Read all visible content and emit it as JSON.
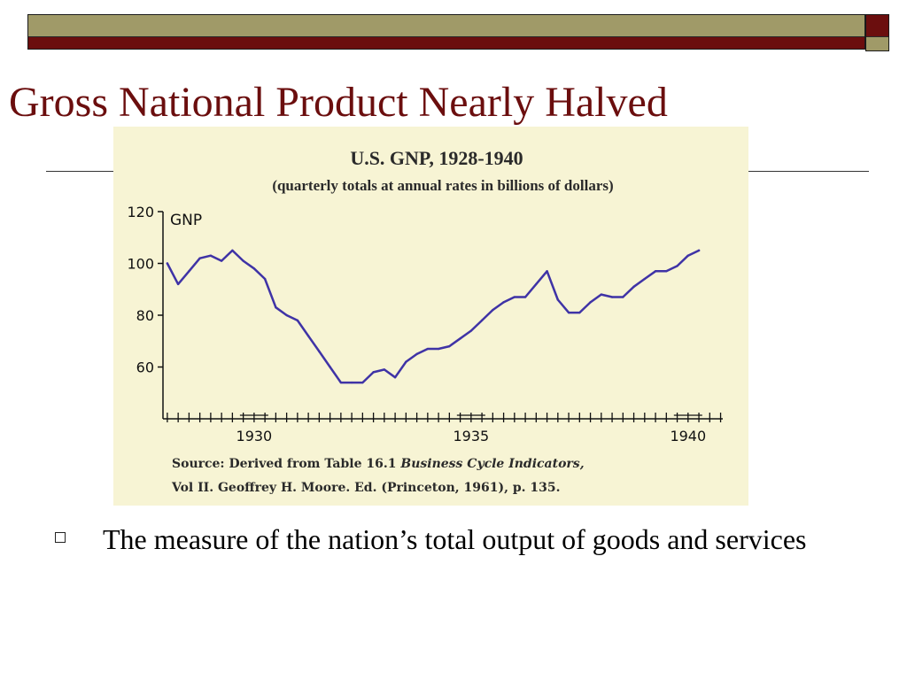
{
  "slide": {
    "title": "Gross National Product Nearly Halved",
    "bullet": "The measure of the nation’s total output of goods and services",
    "colors": {
      "title": "#6b0e0e",
      "bar_maroon": "#6b0e0e",
      "bar_olive": "#a09a68"
    }
  },
  "chart_data": {
    "type": "line",
    "title": "U.S. GNP, 1928-1940",
    "subtitle": "(quarterly totals at annual rates in billions of dollars)",
    "ylabel": "GNP",
    "ylim": [
      40,
      120
    ],
    "yticks": [
      120,
      100,
      80,
      60
    ],
    "xlim": [
      1927.9,
      1940.8
    ],
    "xticks": [
      1930,
      1935,
      1940
    ],
    "xtick_labels": [
      "1930",
      "1935",
      "1940"
    ],
    "source_line1_a": "Source: Derived from Table 16.1 ",
    "source_line1_b": "Business Cycle Indicators,",
    "source_line2": "Vol II. Geoffrey H. Moore. Ed. (Princeton, 1961), p. 135.",
    "line_color": "#3f33a6",
    "background": "#f7f4d4",
    "series": [
      {
        "x": [
          1928.0,
          1928.25,
          1928.5,
          1928.75,
          1929.0,
          1929.25,
          1929.5,
          1929.75,
          1930.0,
          1930.25,
          1930.5,
          1930.75,
          1931.0,
          1931.25,
          1931.5,
          1931.75,
          1932.0,
          1932.25,
          1932.5,
          1932.75,
          1933.0,
          1933.25,
          1933.5,
          1933.75,
          1934.0,
          1934.25,
          1934.5,
          1934.75,
          1935.0,
          1935.25,
          1935.5,
          1935.75,
          1936.0,
          1936.25,
          1936.5,
          1936.75,
          1937.0,
          1937.25,
          1937.5,
          1937.75,
          1938.0,
          1938.25,
          1938.5,
          1938.75,
          1939.0,
          1939.25,
          1939.5,
          1939.75,
          1940.0,
          1940.25
        ],
        "values": [
          100,
          92,
          97,
          102,
          103,
          101,
          105,
          101,
          98,
          94,
          83,
          80,
          78,
          72,
          66,
          60,
          54,
          54,
          54,
          58,
          59,
          56,
          62,
          65,
          67,
          67,
          68,
          71,
          74,
          78,
          82,
          85,
          87,
          87,
          92,
          97,
          86,
          81,
          81,
          85,
          88,
          87,
          87,
          91,
          94,
          97,
          97,
          99,
          103,
          105
        ]
      }
    ]
  }
}
